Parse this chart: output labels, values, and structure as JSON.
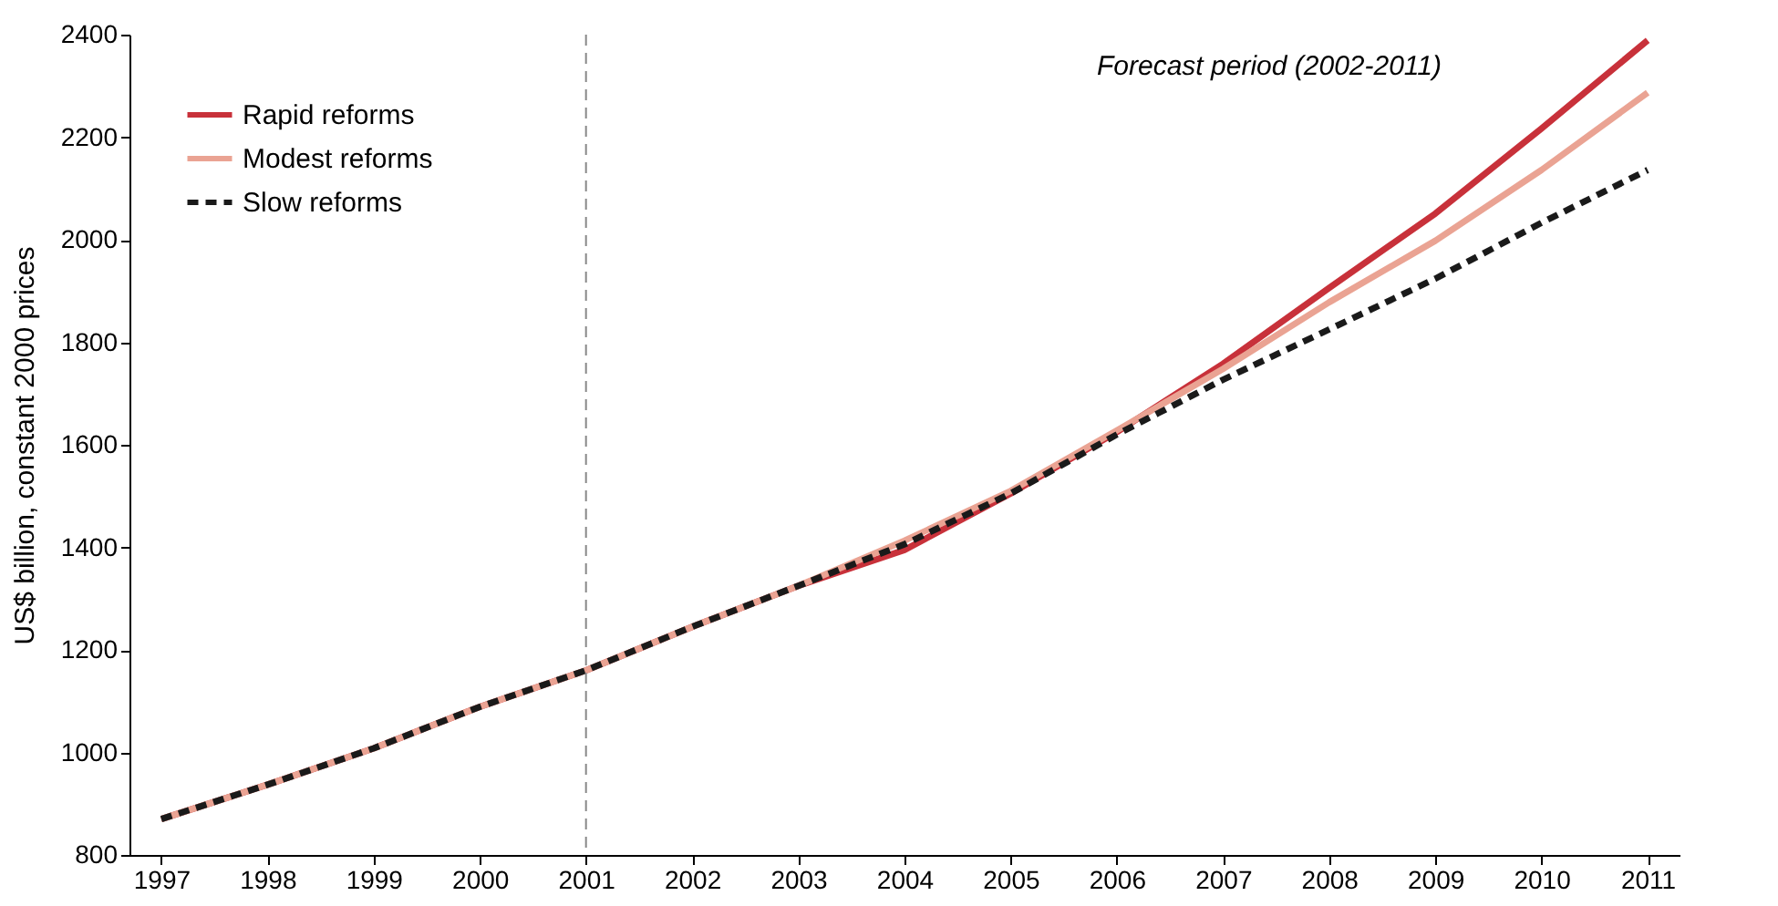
{
  "chart_data": {
    "type": "line",
    "ylabel": "US$ billion, constant 2000 prices",
    "categories": [
      "1997",
      "1998",
      "1999",
      "2000",
      "2001",
      "2002",
      "2003",
      "2004",
      "2005",
      "2006",
      "2007",
      "2008",
      "2009",
      "2010",
      "2011"
    ],
    "ylim": [
      800,
      2400
    ],
    "yticks": [
      800,
      1000,
      1200,
      1400,
      1600,
      1800,
      2000,
      2200,
      2400
    ],
    "grid": false,
    "legend": "top left",
    "series": [
      {
        "name": "Rapid reforms",
        "color": "#c8313a",
        "line_style": "solid",
        "values": [
          870,
          937,
          1008,
          1089,
          1160,
          1245,
          1325,
          1395,
          1505,
          1625,
          1758,
          1906,
          2051,
          2217,
          2389
        ]
      },
      {
        "name": "Modest reforms",
        "color": "#eaa393",
        "line_style": "solid",
        "values": [
          870,
          937,
          1008,
          1089,
          1160,
          1245,
          1325,
          1413,
          1510,
          1628,
          1748,
          1878,
          1998,
          2136,
          2287
        ]
      },
      {
        "name": "Slow reforms",
        "color": "#1a1a1a",
        "line_style": "dashed",
        "values": [
          870,
          937,
          1008,
          1089,
          1160,
          1245,
          1325,
          1406,
          1505,
          1620,
          1727,
          1825,
          1924,
          2033,
          2136
        ]
      }
    ],
    "ref_lines": [
      {
        "axis": "x",
        "value": "2001",
        "color": "#888888",
        "line_style": "dashed"
      }
    ],
    "annotations": [
      "Forecast period (2002-2011)"
    ]
  }
}
